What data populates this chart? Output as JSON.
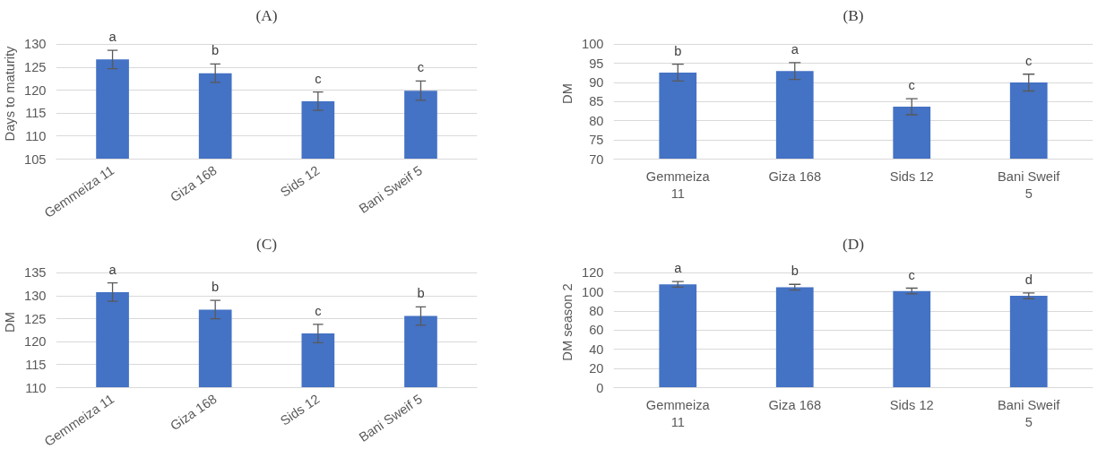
{
  "chart_data": [
    {
      "type": "bar",
      "title": "(A)",
      "ylabel": "Days to maturity",
      "categories": [
        "Gemmeiza 11",
        "Giza 168",
        "Sids 12",
        "Bani Sweif 5"
      ],
      "values": [
        126.7,
        123.7,
        117.6,
        119.9
      ],
      "errors": [
        2,
        2,
        2,
        2.1
      ],
      "color": "#4472c4",
      "ylim": [
        105,
        130
      ],
      "yticks": [
        105,
        110,
        115,
        120,
        125,
        130
      ],
      "grid": "y",
      "annotations": [
        {
          "text": "a",
          "x": "Gemmeiza 11",
          "y": 128.7
        },
        {
          "text": "b",
          "x": "Giza 168",
          "y": 125.7
        },
        {
          "text": "c",
          "x": "Sids 12",
          "y": 119.6
        },
        {
          "text": "c",
          "x": "Bani Sweif 5",
          "y": 122
        }
      ]
    },
    {
      "type": "bar",
      "title": "(B)",
      "ylabel": "DM",
      "categories": [
        "Gemmeiza 11",
        "Giza 168",
        "Sids 12",
        "Bani Sweif 5"
      ],
      "values": [
        92.6,
        93.0,
        83.7,
        90.0
      ],
      "errors": [
        2.2,
        2.2,
        2.1,
        2.2
      ],
      "color": "#4472c4",
      "ylim": [
        70,
        100
      ],
      "yticks": [
        70,
        75,
        80,
        85,
        90,
        95,
        100
      ],
      "grid": "y",
      "annotations": [
        {
          "text": "b",
          "x": "Gemmeiza 11",
          "y": 94.8
        },
        {
          "text": "a",
          "x": "Giza 168",
          "y": 95.2
        },
        {
          "text": "c",
          "x": "Sids 12",
          "y": 85.8
        },
        {
          "text": "c",
          "x": "Bani Sweif 5",
          "y": 92.2
        }
      ]
    },
    {
      "type": "bar",
      "title": "(C)",
      "ylabel": "DM",
      "categories": [
        "Gemmeiza 11",
        "Giza 168",
        "Sids 12",
        "Bani Sweif 5"
      ],
      "values": [
        130.8,
        127.0,
        121.8,
        125.6
      ],
      "errors": [
        2,
        2,
        2,
        2
      ],
      "color": "#4472c4",
      "ylim": [
        110,
        135
      ],
      "yticks": [
        110,
        115,
        120,
        125,
        130,
        135
      ],
      "grid": "y",
      "annotations": [
        {
          "text": "a",
          "x": "Gemmeiza 11",
          "y": 132.8
        },
        {
          "text": "b",
          "x": "Giza 168",
          "y": 129
        },
        {
          "text": "c",
          "x": "Sids 12",
          "y": 123.8
        },
        {
          "text": "b",
          "x": "Bani Sweif 5",
          "y": 127.6
        }
      ]
    },
    {
      "type": "bar",
      "title": "(D)",
      "ylabel": "DM season 2",
      "categories": [
        "Gemmeiza 11",
        "Giza 168",
        "Sids 12",
        "Bani Sweif 5"
      ],
      "values": [
        108,
        105,
        101,
        96
      ],
      "errors": [
        3,
        3,
        3,
        3
      ],
      "color": "#4472c4",
      "ylim": [
        0,
        120
      ],
      "yticks": [
        0,
        20,
        40,
        60,
        80,
        100,
        120
      ],
      "grid": "y",
      "annotations": [
        {
          "text": "a",
          "x": "Gemmeiza 11",
          "y": 111
        },
        {
          "text": "b",
          "x": "Giza 168",
          "y": 108
        },
        {
          "text": "c",
          "x": "Sids 12",
          "y": 104
        },
        {
          "text": "d",
          "x": "Bani Sweif 5",
          "y": 99
        }
      ]
    }
  ]
}
